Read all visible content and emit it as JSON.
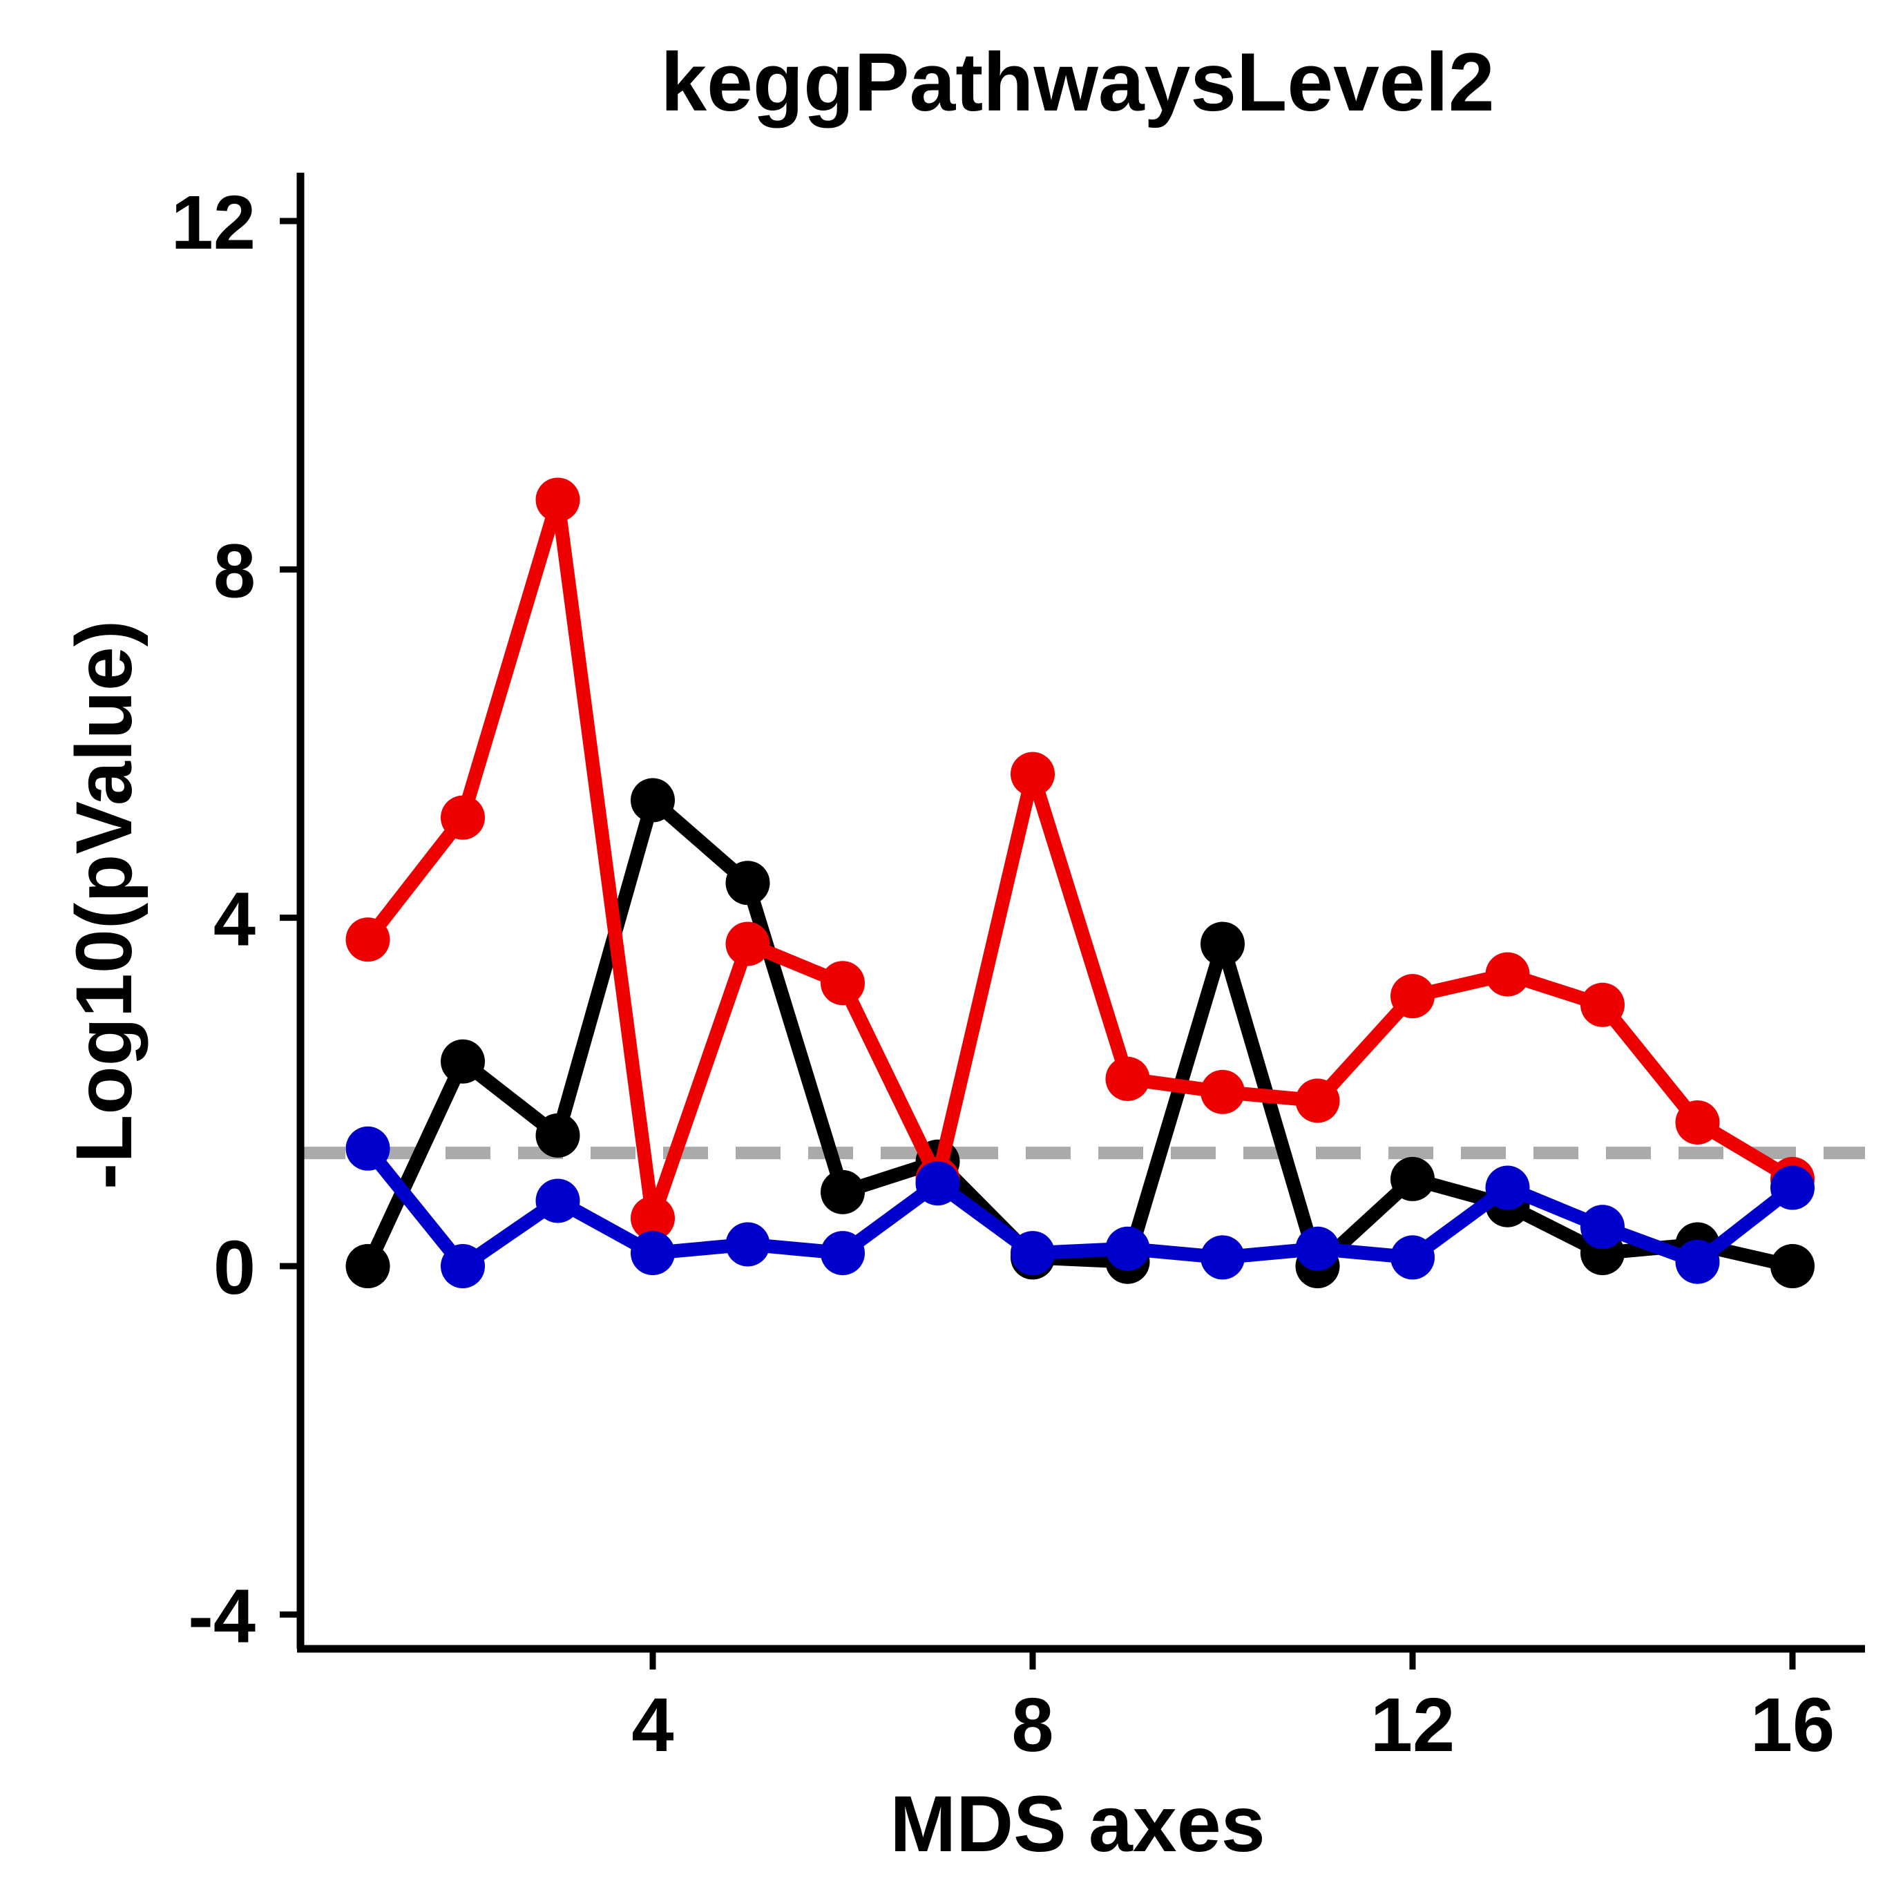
{
  "chart_data": {
    "type": "line",
    "title": "keggPathwaysLevel2",
    "xlabel": "MDS axes",
    "ylabel": "-Log10(pValue)",
    "xlim": [
      0.4,
      16.8
    ],
    "ylim": [
      -4.4,
      12.5
    ],
    "xticks": [
      4,
      8,
      12,
      16
    ],
    "yticks": [
      -4,
      0,
      4,
      8,
      12
    ],
    "x": [
      1,
      2,
      3,
      4,
      5,
      6,
      7,
      8,
      9,
      10,
      11,
      12,
      13,
      14,
      15,
      16
    ],
    "threshold": 1.3,
    "threshold_color": "#aaaaaa",
    "grid": false,
    "series": [
      {
        "color": "#000000",
        "values": [
          0.0,
          2.35,
          1.5,
          5.35,
          4.4,
          0.85,
          1.2,
          0.1,
          0.05,
          3.7,
          0.0,
          1.0,
          0.7,
          0.15,
          0.25,
          0.0
        ]
      },
      {
        "color": "#ee0000",
        "values": [
          3.75,
          5.15,
          8.8,
          0.55,
          3.7,
          3.25,
          1.0,
          5.65,
          2.15,
          2.0,
          1.9,
          3.1,
          3.35,
          3.0,
          1.65,
          1.0
        ]
      },
      {
        "color": "#0000cc",
        "values": [
          1.35,
          0.0,
          0.75,
          0.15,
          0.25,
          0.15,
          0.95,
          0.15,
          0.2,
          0.1,
          0.2,
          0.1,
          0.9,
          0.45,
          0.05,
          0.9
        ]
      }
    ]
  }
}
